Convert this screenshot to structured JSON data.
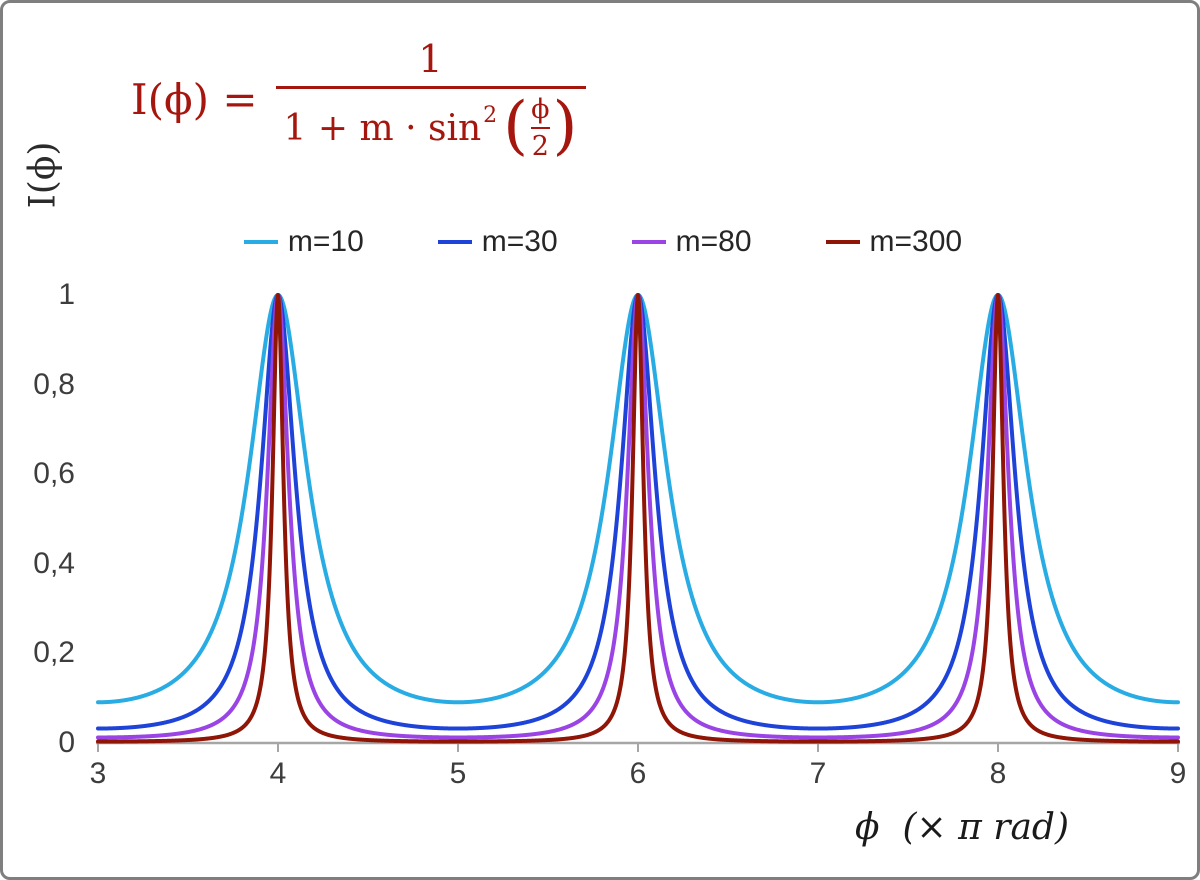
{
  "figure": {
    "border_color": "#7f7f7f",
    "background_color": "#ffffff"
  },
  "formula": {
    "color": "#a5170e",
    "as_text": "I(ϕ) = 1 / (1 + m·sin²(ϕ/2))",
    "lhs": "I(ϕ) =",
    "numerator": "1",
    "den_prefix": "1 + m · sin",
    "den_sup": "2",
    "paren_open": "(",
    "paren_close": ")",
    "inner_num": "ϕ",
    "inner_den": "2"
  },
  "chart_data": {
    "type": "line",
    "title": "",
    "function": "I(x) = 1 / (1 + m * sin^2(x*PI/2)), x expressed in units of PI rad",
    "xlabel": "ϕ  (× π rad)",
    "ylabel": "I(ϕ)",
    "xlim": [
      3,
      9
    ],
    "ylim": [
      0,
      1
    ],
    "x_ticks": [
      3,
      4,
      5,
      6,
      7,
      8,
      9
    ],
    "x_tick_labels": [
      "3",
      "4",
      "5",
      "6",
      "7",
      "8",
      "9"
    ],
    "y_ticks": [
      0,
      0.2,
      0.4,
      0.6,
      0.8,
      1
    ],
    "y_tick_labels": [
      "0",
      "0,2",
      "0,4",
      "0,6",
      "0,8",
      "1"
    ],
    "grid": false,
    "legend_position": "top-center",
    "axis_color": "#a6a6a6",
    "tick_label_color": "#3d3d3d",
    "peaks_at_x": [
      4,
      6,
      8
    ],
    "peak_value": 1,
    "series": [
      {
        "label": "m=10",
        "m": 10,
        "color": "#29ace3"
      },
      {
        "label": "m=30",
        "m": 30,
        "color": "#1e43d8"
      },
      {
        "label": "m=80",
        "m": 80,
        "color": "#9a44e6"
      },
      {
        "label": "m=300",
        "m": 300,
        "color": "#8f1507"
      }
    ]
  }
}
